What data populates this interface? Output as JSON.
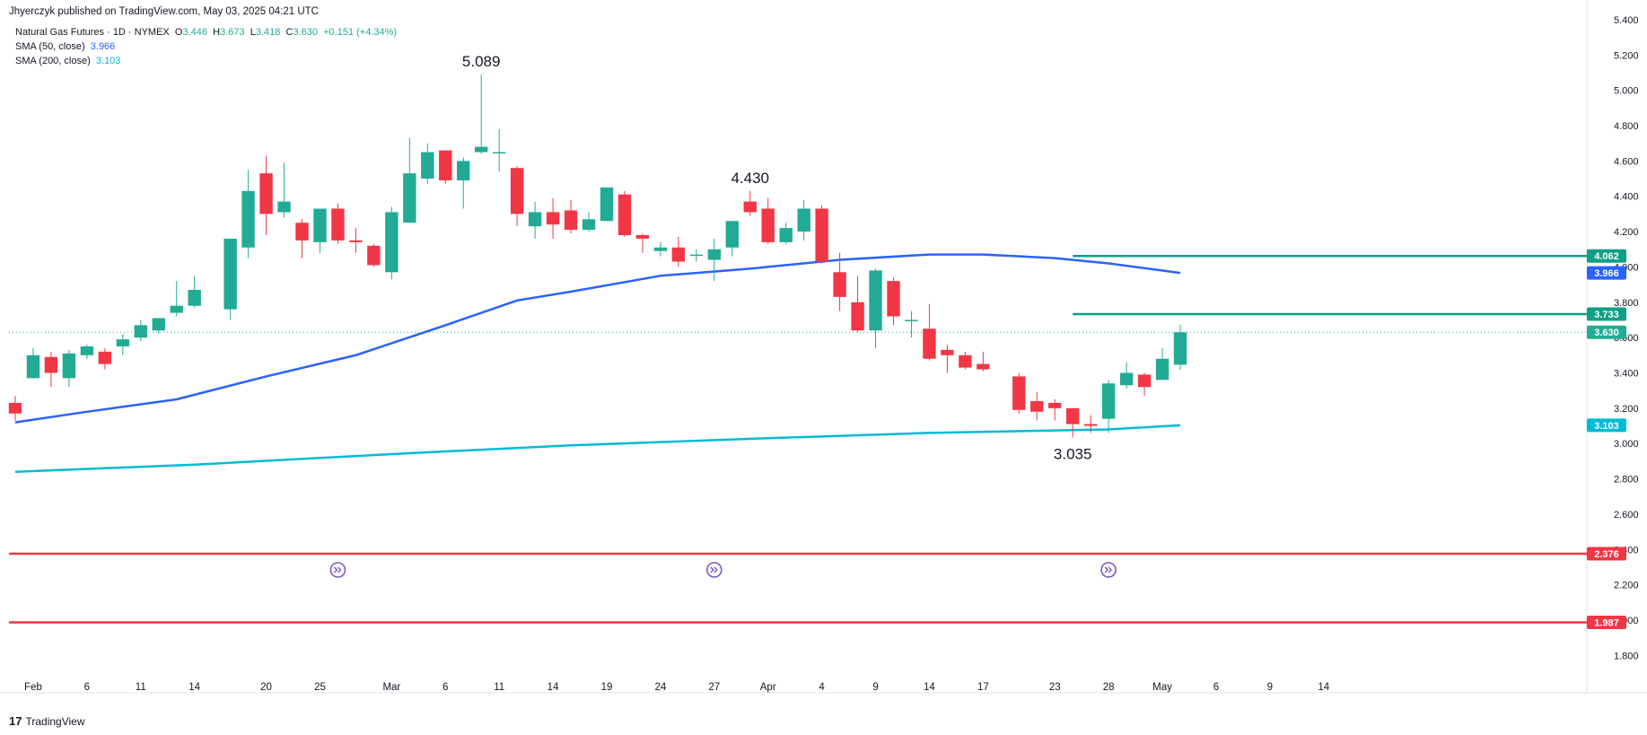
{
  "header": {
    "published": "Jhyerczyk published on TradingView.com, May 03, 2025 04:21 UTC"
  },
  "legend": {
    "symbol": "Natural Gas Futures · 1D · NYMEX",
    "o_label": "O",
    "o": "3.446",
    "h_label": "H",
    "h": "3.673",
    "l_label": "L",
    "l": "3.418",
    "c_label": "C",
    "c": "3.630",
    "change": "+0.151 (+4.34%)",
    "sma50_label": "SMA (50, close)",
    "sma50_value": "3.966",
    "sma200_label": "SMA (200, close)",
    "sma200_value": "3.103"
  },
  "footer": {
    "brand": "TradingView"
  },
  "colors": {
    "up": "#22ab94",
    "down": "#f23645",
    "sma50": "#2962ff",
    "sma200": "#00bcd4",
    "level_red": "#f23645",
    "level_green": "#0e9f85"
  },
  "chart_data": {
    "type": "candlestick",
    "ylim": [
      1.7,
      5.42
    ],
    "y_ticks": [
      "1.800",
      "2.000",
      "2.200",
      "2.400",
      "2.600",
      "2.800",
      "3.000",
      "3.200",
      "3.400",
      "3.600",
      "3.800",
      "4.000",
      "4.200",
      "4.400",
      "4.600",
      "4.800",
      "5.000",
      "5.200",
      "5.400"
    ],
    "x_ticks": [
      {
        "label": "Feb",
        "date": "2025-02-03"
      },
      {
        "label": "6",
        "date": "2025-02-06"
      },
      {
        "label": "11",
        "date": "2025-02-11"
      },
      {
        "label": "14",
        "date": "2025-02-14"
      },
      {
        "label": "20",
        "date": "2025-02-20"
      },
      {
        "label": "25",
        "date": "2025-02-25"
      },
      {
        "label": "Mar",
        "date": "2025-03-03"
      },
      {
        "label": "6",
        "date": "2025-03-06"
      },
      {
        "label": "11",
        "date": "2025-03-11"
      },
      {
        "label": "14",
        "date": "2025-03-14"
      },
      {
        "label": "19",
        "date": "2025-03-19"
      },
      {
        "label": "24",
        "date": "2025-03-24"
      },
      {
        "label": "27",
        "date": "2025-03-27"
      },
      {
        "label": "Apr",
        "date": "2025-04-01"
      },
      {
        "label": "4",
        "date": "2025-04-04"
      },
      {
        "label": "9",
        "date": "2025-04-09"
      },
      {
        "label": "14",
        "date": "2025-04-14"
      },
      {
        "label": "17",
        "date": "2025-04-17"
      },
      {
        "label": "23",
        "date": "2025-04-23"
      },
      {
        "label": "28",
        "date": "2025-04-28"
      },
      {
        "label": "May",
        "date": "2025-05-01"
      },
      {
        "label": "6",
        "date": "2025-05-06"
      },
      {
        "label": "9",
        "date": "2025-05-09"
      },
      {
        "label": "14",
        "date": "2025-05-14"
      }
    ],
    "candles": [
      {
        "date": "2025-01-31",
        "o": 3.23,
        "h": 3.27,
        "l": 3.13,
        "c": 3.17
      },
      {
        "date": "2025-02-03",
        "o": 3.37,
        "h": 3.54,
        "l": 3.37,
        "c": 3.5
      },
      {
        "date": "2025-02-04",
        "o": 3.49,
        "h": 3.52,
        "l": 3.32,
        "c": 3.4
      },
      {
        "date": "2025-02-05",
        "o": 3.37,
        "h": 3.53,
        "l": 3.32,
        "c": 3.51
      },
      {
        "date": "2025-02-06",
        "o": 3.5,
        "h": 3.56,
        "l": 3.48,
        "c": 3.55
      },
      {
        "date": "2025-02-07",
        "o": 3.52,
        "h": 3.54,
        "l": 3.42,
        "c": 3.45
      },
      {
        "date": "2025-02-10",
        "o": 3.55,
        "h": 3.62,
        "l": 3.5,
        "c": 3.59
      },
      {
        "date": "2025-02-11",
        "o": 3.6,
        "h": 3.7,
        "l": 3.58,
        "c": 3.67
      },
      {
        "date": "2025-02-12",
        "o": 3.64,
        "h": 3.71,
        "l": 3.62,
        "c": 3.71
      },
      {
        "date": "2025-02-13",
        "o": 3.74,
        "h": 3.92,
        "l": 3.72,
        "c": 3.78
      },
      {
        "date": "2025-02-14",
        "o": 3.78,
        "h": 3.95,
        "l": 3.77,
        "c": 3.87
      },
      {
        "date": "2025-02-18",
        "o": 3.76,
        "h": 4.16,
        "l": 3.7,
        "c": 4.16
      },
      {
        "date": "2025-02-19",
        "o": 4.11,
        "h": 4.55,
        "l": 4.05,
        "c": 4.43
      },
      {
        "date": "2025-02-20",
        "o": 4.53,
        "h": 4.63,
        "l": 4.18,
        "c": 4.3
      },
      {
        "date": "2025-02-21",
        "o": 4.31,
        "h": 4.59,
        "l": 4.28,
        "c": 4.37
      },
      {
        "date": "2025-02-24",
        "o": 4.25,
        "h": 4.27,
        "l": 4.05,
        "c": 4.15
      },
      {
        "date": "2025-02-25",
        "o": 4.14,
        "h": 4.33,
        "l": 4.08,
        "c": 4.33
      },
      {
        "date": "2025-02-26",
        "o": 4.33,
        "h": 4.36,
        "l": 4.13,
        "c": 4.15
      },
      {
        "date": "2025-02-27",
        "o": 4.15,
        "h": 4.22,
        "l": 4.08,
        "c": 4.14
      },
      {
        "date": "2025-02-28",
        "o": 4.12,
        "h": 4.13,
        "l": 4.0,
        "c": 4.01
      },
      {
        "date": "2025-03-03",
        "o": 3.97,
        "h": 4.34,
        "l": 3.93,
        "c": 4.31
      },
      {
        "date": "2025-03-04",
        "o": 4.25,
        "h": 4.73,
        "l": 4.25,
        "c": 4.53
      },
      {
        "date": "2025-03-05",
        "o": 4.5,
        "h": 4.7,
        "l": 4.47,
        "c": 4.65
      },
      {
        "date": "2025-03-06",
        "o": 4.66,
        "h": 4.66,
        "l": 4.47,
        "c": 4.49
      },
      {
        "date": "2025-03-07",
        "o": 4.49,
        "h": 4.62,
        "l": 4.33,
        "c": 4.6
      },
      {
        "date": "2025-03-10",
        "o": 4.65,
        "h": 5.089,
        "l": 4.64,
        "c": 4.68
      },
      {
        "date": "2025-03-11",
        "o": 4.65,
        "h": 4.78,
        "l": 4.54,
        "c": 4.65
      },
      {
        "date": "2025-03-12",
        "o": 4.56,
        "h": 4.57,
        "l": 4.23,
        "c": 4.3
      },
      {
        "date": "2025-03-13",
        "o": 4.23,
        "h": 4.37,
        "l": 4.16,
        "c": 4.31
      },
      {
        "date": "2025-03-14",
        "o": 4.31,
        "h": 4.39,
        "l": 4.16,
        "c": 4.24
      },
      {
        "date": "2025-03-17",
        "o": 4.32,
        "h": 4.38,
        "l": 4.19,
        "c": 4.21
      },
      {
        "date": "2025-03-18",
        "o": 4.21,
        "h": 4.31,
        "l": 4.2,
        "c": 4.27
      },
      {
        "date": "2025-03-19",
        "o": 4.26,
        "h": 4.45,
        "l": 4.26,
        "c": 4.45
      },
      {
        "date": "2025-03-20",
        "o": 4.41,
        "h": 4.43,
        "l": 4.17,
        "c": 4.18
      },
      {
        "date": "2025-03-21",
        "o": 4.18,
        "h": 4.19,
        "l": 4.08,
        "c": 4.16
      },
      {
        "date": "2025-03-24",
        "o": 4.09,
        "h": 4.14,
        "l": 4.06,
        "c": 4.11
      },
      {
        "date": "2025-03-25",
        "o": 4.11,
        "h": 4.17,
        "l": 4.0,
        "c": 4.03
      },
      {
        "date": "2025-03-26",
        "o": 4.07,
        "h": 4.1,
        "l": 4.03,
        "c": 4.07
      },
      {
        "date": "2025-03-27",
        "o": 4.04,
        "h": 4.16,
        "l": 3.92,
        "c": 4.1
      },
      {
        "date": "2025-03-28",
        "o": 4.11,
        "h": 4.26,
        "l": 4.06,
        "c": 4.26
      },
      {
        "date": "2025-03-31",
        "o": 4.37,
        "h": 4.43,
        "l": 4.29,
        "c": 4.31
      },
      {
        "date": "2025-04-01",
        "o": 4.33,
        "h": 4.39,
        "l": 4.13,
        "c": 4.14
      },
      {
        "date": "2025-04-02",
        "o": 4.14,
        "h": 4.25,
        "l": 4.13,
        "c": 4.22
      },
      {
        "date": "2025-04-03",
        "o": 4.2,
        "h": 4.38,
        "l": 4.15,
        "c": 4.33
      },
      {
        "date": "2025-04-04",
        "o": 4.33,
        "h": 4.35,
        "l": 4.02,
        "c": 4.03
      },
      {
        "date": "2025-04-07",
        "o": 3.97,
        "h": 4.08,
        "l": 3.75,
        "c": 3.83
      },
      {
        "date": "2025-04-08",
        "o": 3.8,
        "h": 3.95,
        "l": 3.63,
        "c": 3.64
      },
      {
        "date": "2025-04-09",
        "o": 3.64,
        "h": 3.99,
        "l": 3.54,
        "c": 3.98
      },
      {
        "date": "2025-04-10",
        "o": 3.92,
        "h": 3.94,
        "l": 3.67,
        "c": 3.72
      },
      {
        "date": "2025-04-11",
        "o": 3.7,
        "h": 3.75,
        "l": 3.6,
        "c": 3.7
      },
      {
        "date": "2025-04-14",
        "o": 3.65,
        "h": 3.79,
        "l": 3.47,
        "c": 3.48
      },
      {
        "date": "2025-04-15",
        "o": 3.53,
        "h": 3.56,
        "l": 3.4,
        "c": 3.5
      },
      {
        "date": "2025-04-16",
        "o": 3.5,
        "h": 3.52,
        "l": 3.42,
        "c": 3.43
      },
      {
        "date": "2025-04-17",
        "o": 3.45,
        "h": 3.52,
        "l": 3.41,
        "c": 3.42
      },
      {
        "date": "2025-04-21",
        "o": 3.38,
        "h": 3.4,
        "l": 3.17,
        "c": 3.19
      },
      {
        "date": "2025-04-22",
        "o": 3.24,
        "h": 3.29,
        "l": 3.13,
        "c": 3.18
      },
      {
        "date": "2025-04-23",
        "o": 3.23,
        "h": 3.25,
        "l": 3.13,
        "c": 3.2
      },
      {
        "date": "2025-04-24",
        "o": 3.2,
        "h": 3.2,
        "l": 3.035,
        "c": 3.11
      },
      {
        "date": "2025-04-25",
        "o": 3.11,
        "h": 3.16,
        "l": 3.06,
        "c": 3.1
      },
      {
        "date": "2025-04-28",
        "o": 3.14,
        "h": 3.36,
        "l": 3.06,
        "c": 3.34
      },
      {
        "date": "2025-04-29",
        "o": 3.33,
        "h": 3.46,
        "l": 3.31,
        "c": 3.4
      },
      {
        "date": "2025-04-30",
        "o": 3.39,
        "h": 3.4,
        "l": 3.27,
        "c": 3.32
      },
      {
        "date": "2025-05-01",
        "o": 3.36,
        "h": 3.54,
        "l": 3.36,
        "c": 3.48
      },
      {
        "date": "2025-05-02",
        "o": 3.446,
        "h": 3.673,
        "l": 3.418,
        "c": 3.63
      }
    ],
    "sma50": [
      {
        "date": "2025-01-31",
        "v": 3.12
      },
      {
        "date": "2025-02-06",
        "v": 3.18
      },
      {
        "date": "2025-02-13",
        "v": 3.25
      },
      {
        "date": "2025-02-20",
        "v": 3.38
      },
      {
        "date": "2025-02-27",
        "v": 3.5
      },
      {
        "date": "2025-03-06",
        "v": 3.67
      },
      {
        "date": "2025-03-12",
        "v": 3.81
      },
      {
        "date": "2025-03-17",
        "v": 3.86
      },
      {
        "date": "2025-03-24",
        "v": 3.95
      },
      {
        "date": "2025-03-31",
        "v": 3.99
      },
      {
        "date": "2025-04-07",
        "v": 4.04
      },
      {
        "date": "2025-04-14",
        "v": 4.07
      },
      {
        "date": "2025-04-17",
        "v": 4.07
      },
      {
        "date": "2025-04-23",
        "v": 4.05
      },
      {
        "date": "2025-04-28",
        "v": 4.02
      },
      {
        "date": "2025-05-02",
        "v": 3.966
      }
    ],
    "sma200": [
      {
        "date": "2025-01-31",
        "v": 2.84
      },
      {
        "date": "2025-02-14",
        "v": 2.88
      },
      {
        "date": "2025-03-03",
        "v": 2.94
      },
      {
        "date": "2025-03-17",
        "v": 2.99
      },
      {
        "date": "2025-04-01",
        "v": 3.03
      },
      {
        "date": "2025-04-14",
        "v": 3.06
      },
      {
        "date": "2025-04-28",
        "v": 3.08
      },
      {
        "date": "2025-05-02",
        "v": 3.103
      }
    ],
    "levels": [
      {
        "value": 4.062,
        "label": "4.062",
        "color": "#0e9f85",
        "from": "2025-04-24"
      },
      {
        "value": 3.733,
        "label": "3.733",
        "color": "#0e9f85",
        "from": "2025-04-24"
      },
      {
        "value": 2.376,
        "label": "2.376",
        "color": "#f23645",
        "from": "start"
      },
      {
        "value": 1.987,
        "label": "1.987",
        "color": "#f23645",
        "from": "start"
      }
    ],
    "price_tags": [
      {
        "value": 3.966,
        "label": "3.966",
        "color": "#2962ff"
      },
      {
        "value": 3.63,
        "label": "3.630",
        "color": "#22ab94"
      },
      {
        "value": 3.103,
        "label": "3.103",
        "color": "#00bcd4"
      }
    ],
    "annotations": [
      {
        "text": "5.089",
        "date": "2025-03-10",
        "value": 5.089,
        "pos": "above"
      },
      {
        "text": "4.430",
        "date": "2025-03-31",
        "value": 4.43,
        "pos": "above"
      },
      {
        "text": "3.035",
        "date": "2025-04-24",
        "value": 3.035,
        "pos": "below"
      }
    ],
    "event_markers": [
      "2025-02-26",
      "2025-03-27",
      "2025-04-28"
    ],
    "current_price": 3.63
  }
}
